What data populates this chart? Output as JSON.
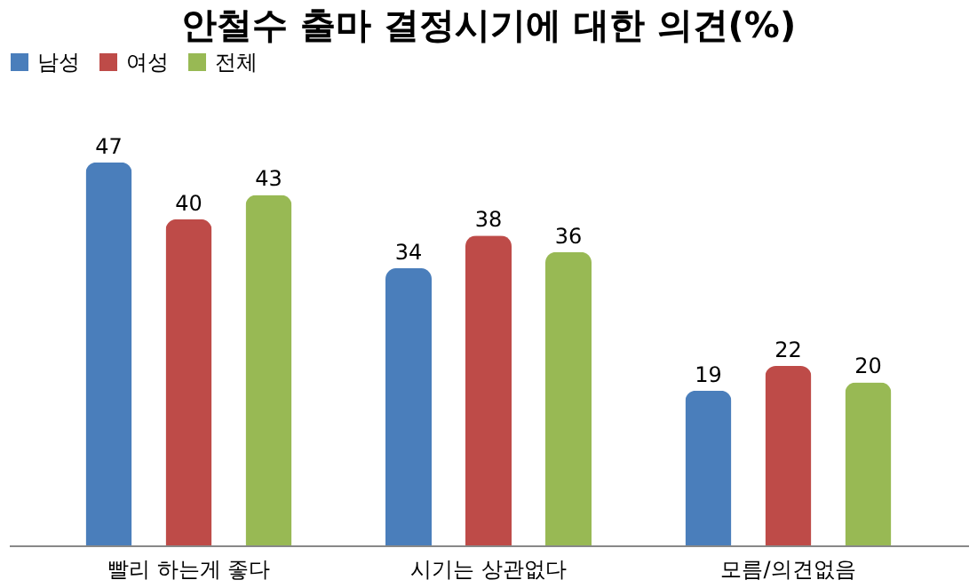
{
  "chart_data": {
    "type": "bar",
    "title": "안철수 출마 결정시기에 대한 의견(%)",
    "categories": [
      "빨리 하는게 좋다",
      "시기는 상관없다",
      "모름/의견없음"
    ],
    "series": [
      {
        "name": "남성",
        "color": "#4a7ebb",
        "values": [
          47,
          34,
          19
        ]
      },
      {
        "name": "여성",
        "color": "#be4b48",
        "values": [
          40,
          38,
          22
        ]
      },
      {
        "name": "전체",
        "color": "#98b954",
        "values": [
          43,
          36,
          20
        ]
      }
    ],
    "data_labels": true,
    "legend": "top",
    "grid": false
  }
}
